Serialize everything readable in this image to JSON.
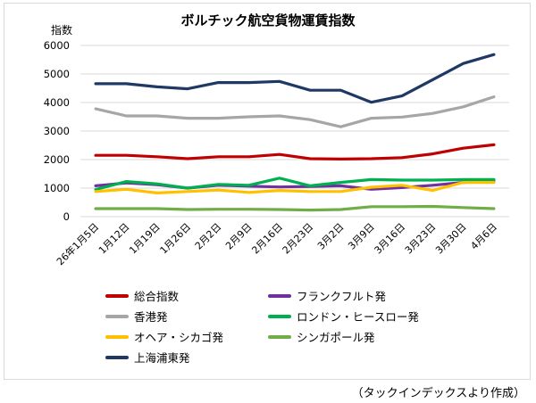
{
  "chart_data": {
    "type": "line",
    "title": "ボルチック航空貨物運賃指数",
    "ylabel": "指数",
    "xlabel": "",
    "ylim": [
      0,
      6000
    ],
    "yticks": [
      0,
      1000,
      2000,
      3000,
      4000,
      5000,
      6000
    ],
    "grid": "horizontal",
    "legend": "bottom",
    "categories": [
      "26年1月5日",
      "1月12日",
      "1月19日",
      "1月26日",
      "2月2日",
      "2月9日",
      "2月16日",
      "2月23日",
      "3月2日",
      "3月9日",
      "3月16日",
      "3月23日",
      "3月30日",
      "4月6日"
    ],
    "series": [
      {
        "name": "総合指数",
        "color": "#c00000",
        "values": [
          2150,
          2150,
          2100,
          2030,
          2100,
          2100,
          2180,
          2030,
          2020,
          2030,
          2070,
          2200,
          2400,
          2520
        ]
      },
      {
        "name": "フランクフルト発",
        "color": "#7030a0",
        "values": [
          1080,
          1180,
          1120,
          1000,
          1100,
          1070,
          1040,
          1060,
          1080,
          960,
          1020,
          1100,
          1200,
          1250
        ]
      },
      {
        "name": "香港発",
        "color": "#a6a6a6",
        "values": [
          3780,
          3530,
          3530,
          3450,
          3450,
          3500,
          3530,
          3400,
          3150,
          3450,
          3490,
          3620,
          3850,
          4200
        ]
      },
      {
        "name": "ロンドン・ヒースロー発",
        "color": "#00b050",
        "values": [
          950,
          1230,
          1150,
          1000,
          1130,
          1100,
          1350,
          1080,
          1200,
          1300,
          1280,
          1280,
          1300,
          1300
        ]
      },
      {
        "name": "オヘア・シカゴ発",
        "color": "#ffc000",
        "values": [
          880,
          960,
          830,
          880,
          930,
          850,
          920,
          880,
          880,
          1030,
          1100,
          920,
          1200,
          1200
        ]
      },
      {
        "name": "シンガポール発",
        "color": "#70ad47",
        "values": [
          280,
          280,
          280,
          250,
          260,
          260,
          250,
          230,
          250,
          350,
          350,
          360,
          320,
          280
        ]
      },
      {
        "name": "上海浦東発",
        "color": "#203864",
        "values": [
          4660,
          4660,
          4550,
          4480,
          4700,
          4700,
          4740,
          4430,
          4430,
          4010,
          4230,
          4800,
          5370,
          5680
        ]
      }
    ]
  },
  "source_note": "（タックインデックスより作成）"
}
